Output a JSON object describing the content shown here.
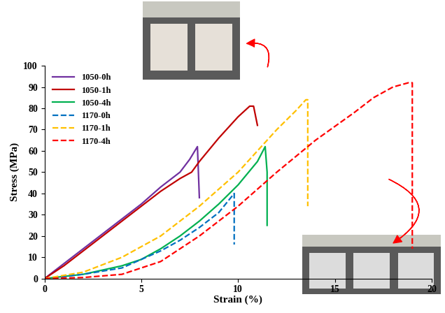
{
  "chart_data": {
    "type": "line",
    "x_label": "Strain (%)",
    "y_label": "Stress (MPa)",
    "xlim": [
      0,
      20
    ],
    "xticks": [
      0,
      5,
      10,
      15,
      20
    ],
    "ylim": [
      0,
      100
    ],
    "yticks": [
      0,
      10,
      20,
      30,
      40,
      50,
      60,
      70,
      80,
      90,
      100
    ],
    "legend": "upper left",
    "series": [
      {
        "name": "1050-0h",
        "color": "#7030A0",
        "line_style": "solid",
        "x": [
          0,
          1,
          2,
          3,
          4,
          5,
          6,
          7,
          7.5,
          7.9,
          8.0
        ],
        "values": [
          0,
          7,
          14,
          21,
          28,
          35,
          43,
          50,
          56,
          62,
          38
        ]
      },
      {
        "name": "1050-1h",
        "color": "#C00000",
        "line_style": "solid",
        "x": [
          0,
          1,
          2,
          3,
          4,
          5,
          6,
          7,
          7.6,
          8,
          9,
          10,
          10.6,
          10.8,
          11
        ],
        "values": [
          0,
          6,
          13,
          20,
          27,
          34,
          41,
          47,
          50,
          55,
          66,
          76,
          81,
          81,
          72
        ]
      },
      {
        "name": "1050-4h",
        "color": "#00B050",
        "line_style": "solid",
        "x": [
          0,
          2,
          4,
          5,
          6,
          7,
          8,
          9,
          10,
          11,
          11.4,
          11.5,
          11.5
        ],
        "values": [
          0,
          2,
          6,
          9,
          14,
          20,
          27,
          35,
          44,
          55,
          62,
          50,
          25
        ]
      },
      {
        "name": "1170-0h",
        "color": "#0070C0",
        "line_style": "dashed",
        "x": [
          0,
          2,
          4,
          5,
          6,
          7,
          8,
          9,
          9.8,
          9.8
        ],
        "values": [
          0,
          2,
          5,
          9,
          13,
          18,
          24,
          31,
          40,
          16
        ]
      },
      {
        "name": "1170-1h",
        "color": "#FFC000",
        "line_style": "dashed",
        "x": [
          0,
          2,
          4,
          6,
          8,
          10,
          11,
          12,
          13,
          13.5,
          13.6,
          13.6
        ],
        "values": [
          0,
          3,
          10,
          20,
          34,
          50,
          60,
          70,
          79,
          84,
          84,
          34
        ]
      },
      {
        "name": "1170-4h",
        "color": "#FF0000",
        "line_style": "dashed",
        "x": [
          0,
          2,
          4,
          6,
          8,
          10,
          12,
          14,
          16,
          17,
          18,
          18.8,
          19,
          19
        ],
        "values": [
          0,
          0.5,
          2,
          8,
          20,
          34,
          50,
          65,
          78,
          85,
          90,
          92,
          92,
          14
        ]
      }
    ]
  }
}
